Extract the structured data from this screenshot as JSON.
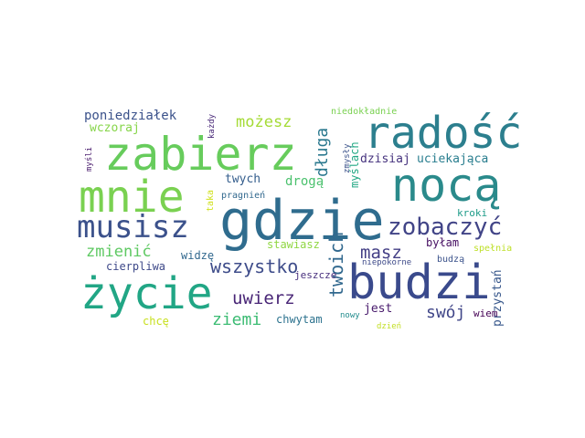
{
  "words": [
    {
      "text": "gdzie",
      "color": "#2f6c8e"
    },
    {
      "text": "życie",
      "color": "#21a685"
    },
    {
      "text": "budzi",
      "color": "#3a4a8c"
    },
    {
      "text": "nocą",
      "color": "#2a8a8b"
    },
    {
      "text": "mnie",
      "color": "#7ad151"
    },
    {
      "text": "zabierz",
      "color": "#67cc5c"
    },
    {
      "text": "radość",
      "color": "#2c7f8e"
    },
    {
      "text": "musisz",
      "color": "#3b518b"
    },
    {
      "text": "zobaczyć",
      "color": "#414487"
    },
    {
      "text": "wszystko",
      "color": "#3e4c8a"
    },
    {
      "text": "uwierz",
      "color": "#482576"
    },
    {
      "text": "twoich",
      "color": "#31688e"
    },
    {
      "text": "masz",
      "color": "#433e85"
    },
    {
      "text": "zmienić",
      "color": "#5ec962"
    },
    {
      "text": "ziemi",
      "color": "#3dbc74"
    },
    {
      "text": "swój",
      "color": "#404688"
    },
    {
      "text": "możesz",
      "color": "#a5db36"
    },
    {
      "text": "długa",
      "color": "#2a788e"
    },
    {
      "text": "poniedziałek",
      "color": "#3b528b"
    },
    {
      "text": "wczoraj",
      "color": "#86d549"
    },
    {
      "text": "uciekająca",
      "color": "#287d8e"
    },
    {
      "text": "twych",
      "color": "#355e8d"
    },
    {
      "text": "drogą",
      "color": "#4ac16d"
    },
    {
      "text": "myślach",
      "color": "#22a884"
    },
    {
      "text": "dzisiaj",
      "color": "#46337e"
    },
    {
      "text": "przystań",
      "color": "#38588c"
    },
    {
      "text": "jest",
      "color": "#481a6c"
    },
    {
      "text": "chwytam",
      "color": "#2c728e"
    },
    {
      "text": "byłam",
      "color": "#471063"
    },
    {
      "text": "kroki",
      "color": "#1e9c89"
    },
    {
      "text": "stawiasz",
      "color": "#90d743"
    },
    {
      "text": "cierpliwa",
      "color": "#3e4989"
    },
    {
      "text": "widzę",
      "color": "#31688e"
    },
    {
      "text": "jeszcze",
      "color": "#472f7d"
    },
    {
      "text": "chcę",
      "color": "#c8e020"
    },
    {
      "text": "wiem",
      "color": "#440154"
    },
    {
      "text": "budzą",
      "color": "#3b528b"
    },
    {
      "text": "spełnia",
      "color": "#bddf26"
    },
    {
      "text": "niepokorne",
      "color": "#3e4a89"
    },
    {
      "text": "pragnień",
      "color": "#31688e"
    },
    {
      "text": "nowy",
      "color": "#228c8d"
    },
    {
      "text": "dzień",
      "color": "#c2df23"
    },
    {
      "text": "taka",
      "color": "#d0e11c"
    },
    {
      "text": "niedokładnie",
      "color": "#7ad151"
    },
    {
      "text": "każdy",
      "color": "#482878"
    },
    {
      "text": "myśli",
      "color": "#481a6c"
    },
    {
      "text": "zmysły",
      "color": "#3b528b"
    }
  ]
}
